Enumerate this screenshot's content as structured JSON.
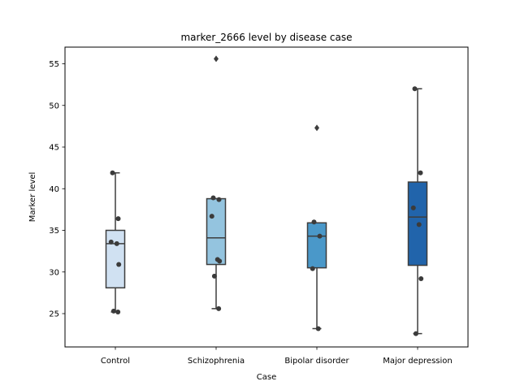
{
  "chart_data": {
    "type": "box",
    "title": "marker_2666 level by disease case",
    "xlabel": "Case",
    "ylabel": "Marker level",
    "categories": [
      "Control",
      "Schizophrenia",
      "Bipolar disorder",
      "Major depression"
    ],
    "ylim": [
      21,
      57
    ],
    "yticks": [
      25,
      30,
      35,
      40,
      45,
      50,
      55
    ],
    "grid": false,
    "legend": "none",
    "colors": [
      "#d0e1f2",
      "#94c4df",
      "#4a98c9",
      "#2164ab"
    ],
    "boxes": [
      {
        "category": "Control",
        "whisker_low": 25.2,
        "q1": 28.1,
        "median": 33.4,
        "q3": 35.0,
        "whisker_high": 41.9,
        "outliers": [],
        "points": [
          41.9,
          36.4,
          33.6,
          33.4,
          30.9,
          25.3,
          25.2
        ]
      },
      {
        "category": "Schizophrenia",
        "whisker_low": 25.6,
        "q1": 30.9,
        "median": 34.1,
        "q3": 38.8,
        "whisker_high": 38.8,
        "outliers": [
          55.6
        ],
        "points": [
          38.9,
          38.7,
          36.7,
          31.5,
          31.3,
          29.5,
          25.6
        ]
      },
      {
        "category": "Bipolar disorder",
        "whisker_low": 23.2,
        "q1": 30.5,
        "median": 34.3,
        "q3": 35.9,
        "whisker_high": 35.9,
        "outliers": [
          47.3
        ],
        "points": [
          36.0,
          34.3,
          30.4,
          23.2
        ]
      },
      {
        "category": "Major depression",
        "whisker_low": 22.6,
        "q1": 30.8,
        "median": 36.6,
        "q3": 40.8,
        "whisker_high": 52.0,
        "outliers": [],
        "points": [
          52.0,
          41.9,
          37.7,
          35.7,
          29.2,
          22.6
        ]
      }
    ]
  }
}
